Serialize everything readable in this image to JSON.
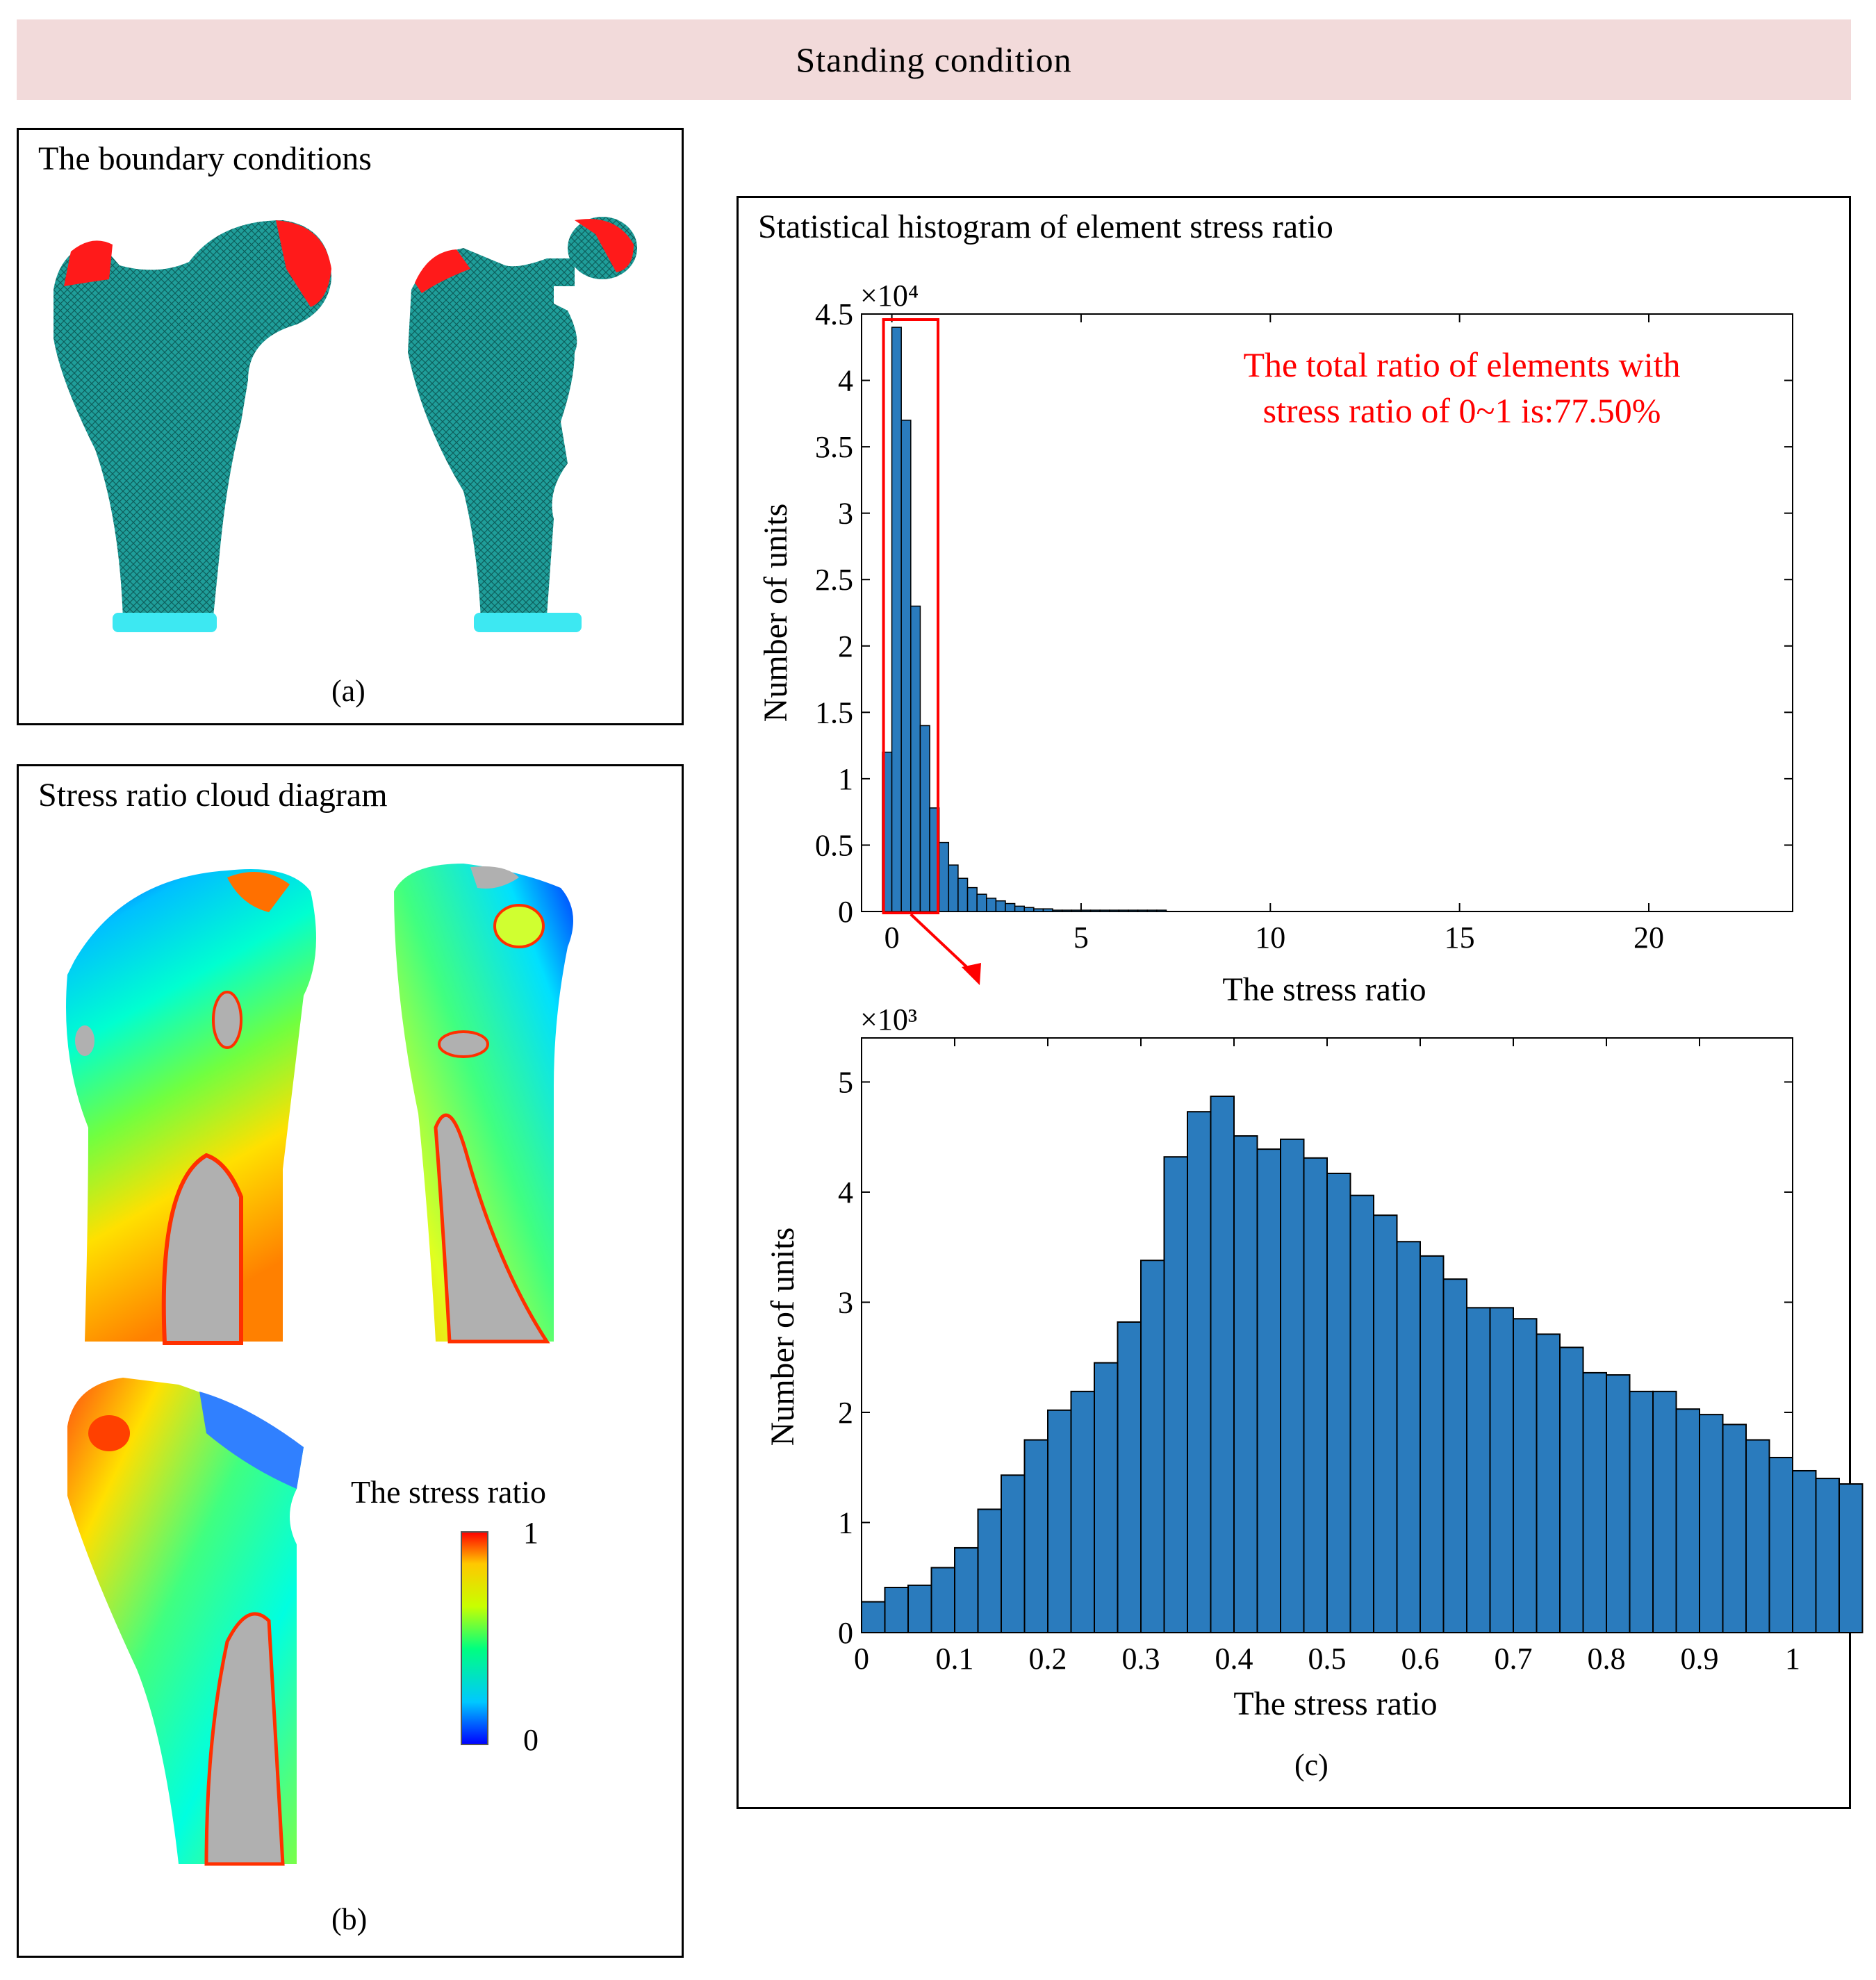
{
  "header": {
    "title": "Standing condition"
  },
  "panel_a": {
    "title": "The boundary conditions",
    "label": "(a)"
  },
  "panel_b": {
    "title": "Stress ratio cloud diagram",
    "label": "(b)",
    "colorbar": {
      "title": "The stress ratio",
      "max_label": "1",
      "min_label": "0",
      "colors": [
        "#0000ff",
        "#00c8ff",
        "#00ff80",
        "#c8ff00",
        "#ffc800",
        "#ff0000"
      ]
    }
  },
  "panel_c": {
    "title": "Statistical histogram of element stress ratio",
    "label": "(c)",
    "annotation": {
      "line1": "The total ratio of elements with",
      "line2": "stress ratio of 0~1 is:77.50%",
      "color": "#ff0000"
    }
  },
  "chart_data": [
    {
      "type": "bar",
      "title": "",
      "xlabel": "The stress ratio",
      "ylabel": "Number of units",
      "y_multiplier_label": "×10⁴",
      "xlim": [
        -0.8,
        23.8
      ],
      "ylim": [
        0,
        4.5
      ],
      "xticks": [
        0,
        5,
        10,
        15,
        20
      ],
      "yticks": [
        0,
        0.5,
        1,
        1.5,
        2,
        2.5,
        3,
        3.5,
        4,
        4.5
      ],
      "ytick_labels": [
        "0",
        "0.5",
        "1",
        "1.5",
        "2",
        "2.5",
        "3",
        "3.5",
        "4",
        "4.5"
      ],
      "bin_width": 0.25,
      "bin_start": -0.25,
      "values": [
        1.2,
        4.4,
        3.7,
        2.3,
        1.4,
        0.78,
        0.52,
        0.35,
        0.25,
        0.18,
        0.13,
        0.1,
        0.08,
        0.06,
        0.04,
        0.03,
        0.02,
        0.02,
        0.01,
        0.01,
        0.01,
        0.01,
        0.01,
        0.01,
        0.01,
        0.01,
        0.01,
        0.01,
        0.01,
        0.01
      ],
      "bar_color": "#2a7bbd",
      "highlight_range": [
        0,
        1
      ],
      "highlight_color": "#ff0000"
    },
    {
      "type": "bar",
      "title": "",
      "xlabel": "The stress ratio",
      "ylabel": "Number of units",
      "y_multiplier_label": "×10³",
      "xlim": [
        0,
        1
      ],
      "ylim": [
        0,
        5.4
      ],
      "xticks": [
        0,
        0.1,
        0.2,
        0.3,
        0.4,
        0.5,
        0.6,
        0.7,
        0.8,
        0.9,
        1
      ],
      "xtick_labels": [
        "0",
        "0.1",
        "0.2",
        "0.3",
        "0.4",
        "0.5",
        "0.6",
        "0.7",
        "0.8",
        "0.9",
        "1"
      ],
      "yticks": [
        0,
        1,
        2,
        3,
        4,
        5
      ],
      "bin_width": 0.025,
      "values": [
        0.28,
        0.41,
        0.43,
        0.59,
        0.77,
        1.12,
        1.43,
        1.75,
        2.02,
        2.19,
        2.45,
        2.82,
        3.38,
        4.32,
        4.73,
        4.87,
        4.51,
        4.39,
        4.48,
        4.31,
        4.17,
        3.97,
        3.79,
        3.55,
        3.42,
        3.21,
        2.95,
        2.95,
        2.85,
        2.71,
        2.59,
        2.36,
        2.34,
        2.19,
        2.19,
        2.03,
        1.98,
        1.89,
        1.75,
        1.59,
        1.47,
        1.4,
        1.35
      ],
      "bar_color": "#2a7bbd"
    }
  ]
}
